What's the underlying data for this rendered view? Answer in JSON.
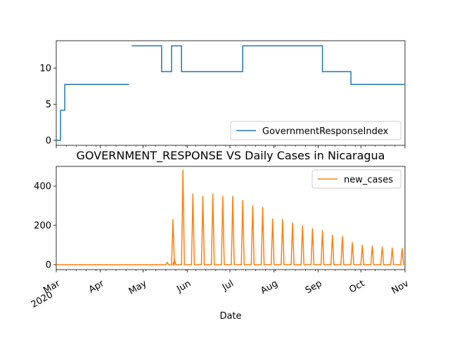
{
  "chart_data": [
    {
      "type": "line",
      "title": "",
      "xlabel": "",
      "ylabel": "",
      "ylim": [
        -0.7,
        13.8
      ],
      "yticks": [
        0,
        5,
        10
      ],
      "legend_position": "lower-right",
      "grid": false,
      "series": [
        {
          "name": "GovernmentResponseIndex",
          "color": "#1f77b4",
          "segments": [
            [
              {
                "x": "2020-03-01",
                "y": 0
              },
              {
                "x": "2020-03-04",
                "y": 0
              },
              {
                "x": "2020-03-04",
                "y": 4.17
              },
              {
                "x": "2020-03-07",
                "y": 4.17
              },
              {
                "x": "2020-03-07",
                "y": 7.74
              },
              {
                "x": "2020-04-21",
                "y": 7.74
              }
            ],
            [
              {
                "x": "2020-04-23",
                "y": 13.1
              },
              {
                "x": "2020-05-14",
                "y": 13.1
              },
              {
                "x": "2020-05-14",
                "y": 9.52
              },
              {
                "x": "2020-05-21",
                "y": 9.52
              },
              {
                "x": "2020-05-21",
                "y": 13.1
              },
              {
                "x": "2020-05-28",
                "y": 13.1
              },
              {
                "x": "2020-05-28",
                "y": 9.52
              },
              {
                "x": "2020-07-10",
                "y": 9.52
              },
              {
                "x": "2020-07-10",
                "y": 13.1
              },
              {
                "x": "2020-09-04",
                "y": 13.1
              },
              {
                "x": "2020-09-04",
                "y": 9.52
              },
              {
                "x": "2020-09-24",
                "y": 9.52
              },
              {
                "x": "2020-09-24",
                "y": 7.74
              },
              {
                "x": "2020-11-01",
                "y": 7.74
              }
            ]
          ]
        }
      ]
    },
    {
      "type": "line",
      "title": "GOVERNMENT_RESPONSE VS Daily Cases in Nicaragua",
      "xlabel": "Date",
      "ylabel": "",
      "ylim": [
        -25,
        500
      ],
      "yticks": [
        0,
        200,
        400
      ],
      "legend_position": "upper-right",
      "grid": false,
      "series": [
        {
          "name": "new_cases",
          "color": "#ff7f0e",
          "baseline": 0,
          "spikes": [
            {
              "x": "2020-05-18",
              "y": 12
            },
            {
              "x": "2020-05-22",
              "y": 230
            },
            {
              "x": "2020-05-23",
              "y": 25
            },
            {
              "x": "2020-05-29",
              "y": 480
            },
            {
              "x": "2020-06-05",
              "y": 360
            },
            {
              "x": "2020-06-12",
              "y": 348
            },
            {
              "x": "2020-06-19",
              "y": 360
            },
            {
              "x": "2020-06-26",
              "y": 348
            },
            {
              "x": "2020-07-03",
              "y": 348
            },
            {
              "x": "2020-07-10",
              "y": 327
            },
            {
              "x": "2020-07-17",
              "y": 300
            },
            {
              "x": "2020-07-24",
              "y": 292
            },
            {
              "x": "2020-07-31",
              "y": 233
            },
            {
              "x": "2020-08-07",
              "y": 230
            },
            {
              "x": "2020-08-14",
              "y": 212
            },
            {
              "x": "2020-08-21",
              "y": 197
            },
            {
              "x": "2020-08-28",
              "y": 183
            },
            {
              "x": "2020-09-04",
              "y": 174
            },
            {
              "x": "2020-09-11",
              "y": 150
            },
            {
              "x": "2020-09-18",
              "y": 143
            },
            {
              "x": "2020-09-25",
              "y": 113
            },
            {
              "x": "2020-10-02",
              "y": 99
            },
            {
              "x": "2020-10-09",
              "y": 95
            },
            {
              "x": "2020-10-16",
              "y": 90
            },
            {
              "x": "2020-10-23",
              "y": 85
            },
            {
              "x": "2020-10-30",
              "y": 82
            }
          ]
        }
      ]
    }
  ],
  "x_axis": {
    "range": [
      "2020-03-01",
      "2020-11-01"
    ],
    "ticks": [
      {
        "x": "2020-03-01",
        "label": "Mar",
        "sublabel": "2020"
      },
      {
        "x": "2020-04-01",
        "label": "Apr"
      },
      {
        "x": "2020-05-01",
        "label": "May"
      },
      {
        "x": "2020-06-01",
        "label": "Jun"
      },
      {
        "x": "2020-07-01",
        "label": "Jul"
      },
      {
        "x": "2020-08-01",
        "label": "Aug"
      },
      {
        "x": "2020-09-01",
        "label": "Sep"
      },
      {
        "x": "2020-10-01",
        "label": "Oct"
      },
      {
        "x": "2020-11-01",
        "label": "Nov"
      }
    ]
  }
}
